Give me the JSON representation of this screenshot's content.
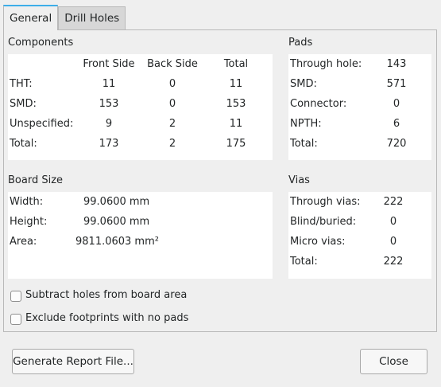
{
  "tabs": [
    "General",
    "Drill Holes"
  ],
  "components": {
    "title": "Components",
    "headers": [
      "Front Side",
      "Back Side",
      "Total"
    ],
    "rows": [
      {
        "label": "THT:",
        "front": "11",
        "back": "0",
        "total": "11"
      },
      {
        "label": "SMD:",
        "front": "153",
        "back": "0",
        "total": "153"
      },
      {
        "label": "Unspecified:",
        "front": "9",
        "back": "2",
        "total": "11"
      },
      {
        "label": "Total:",
        "front": "173",
        "back": "2",
        "total": "175"
      }
    ]
  },
  "pads": {
    "title": "Pads",
    "rows": [
      {
        "label": "Through hole:",
        "value": "143"
      },
      {
        "label": "SMD:",
        "value": "571"
      },
      {
        "label": "Connector:",
        "value": "0"
      },
      {
        "label": "NPTH:",
        "value": "6"
      },
      {
        "label": "Total:",
        "value": "720"
      }
    ]
  },
  "board_size": {
    "title": "Board Size",
    "rows": [
      {
        "label": "Width:",
        "value": "99.0600 mm"
      },
      {
        "label": "Height:",
        "value": "99.0600 mm"
      },
      {
        "label": "Area:",
        "value": "9811.0603 mm²"
      }
    ]
  },
  "vias": {
    "title": "Vias",
    "rows": [
      {
        "label": "Through vias:",
        "value": "222"
      },
      {
        "label": "Blind/buried:",
        "value": "0"
      },
      {
        "label": "Micro vias:",
        "value": "0"
      },
      {
        "label": "Total:",
        "value": "222"
      }
    ]
  },
  "options": {
    "subtract_holes": "Subtract holes from board area",
    "exclude_footprints": "Exclude footprints with no pads"
  },
  "buttons": {
    "generate": "Generate Report File...",
    "close": "Close"
  },
  "colors": {
    "accent": "#3daee9"
  }
}
